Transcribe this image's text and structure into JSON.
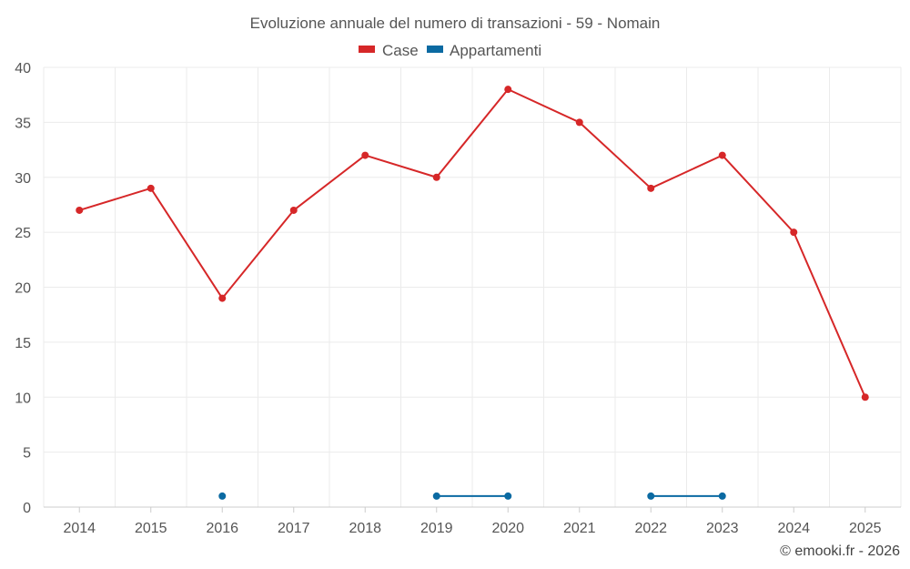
{
  "chart_data": {
    "type": "line",
    "title": "Evoluzione annuale del numero di transazioni - 59 - Nomain",
    "xlabel": "",
    "ylabel": "",
    "categories": [
      "2014",
      "2015",
      "2016",
      "2017",
      "2018",
      "2019",
      "2020",
      "2021",
      "2022",
      "2023",
      "2024",
      "2025"
    ],
    "ylim": [
      0,
      40
    ],
    "yticks": [
      "0",
      "5",
      "10",
      "15",
      "20",
      "25",
      "30",
      "35",
      "40"
    ],
    "grid": true,
    "legend_position": "top-center",
    "series": [
      {
        "name": "Case",
        "color": "#d62728",
        "values": [
          27,
          29,
          19,
          27,
          32,
          30,
          38,
          35,
          29,
          32,
          25,
          10
        ]
      },
      {
        "name": "Appartamenti",
        "color": "#0b6aa2",
        "values": [
          null,
          null,
          1,
          null,
          null,
          1,
          1,
          null,
          1,
          1,
          null,
          null
        ]
      }
    ]
  },
  "credit": "© emooki.fr - 2026"
}
